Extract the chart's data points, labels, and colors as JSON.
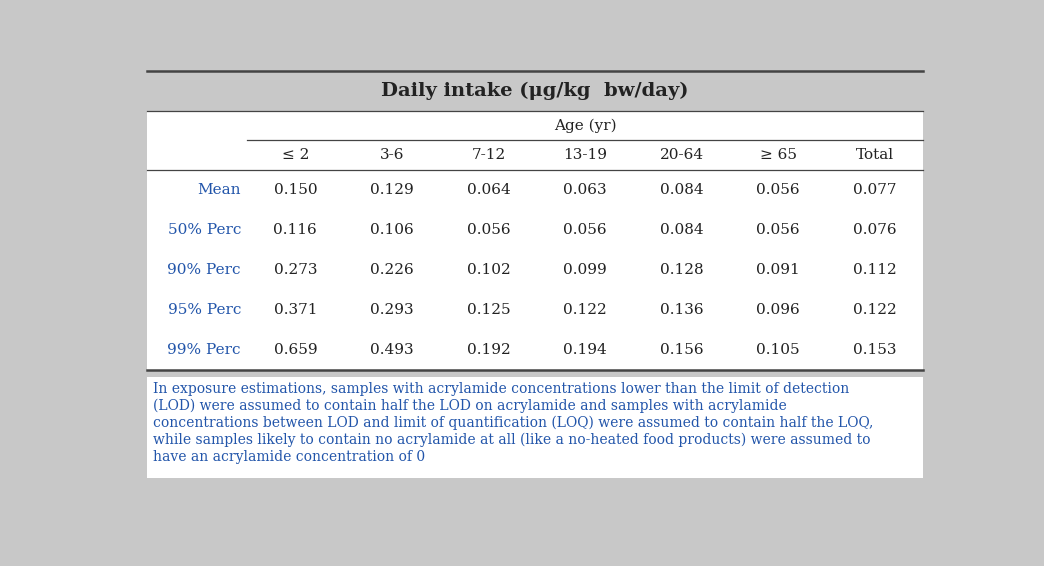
{
  "title": "Daily intake (μg/kg  bw/day)",
  "subtitle": "Age (yr)",
  "col_headers": [
    "≤ 2",
    "3-6",
    "7-12",
    "13-19",
    "20-64",
    "≥ 65",
    "Total"
  ],
  "row_headers": [
    "Mean",
    "50% Perc",
    "90% Perc",
    "95% Perc",
    "99% Perc"
  ],
  "data": [
    [
      "0.150",
      "0.129",
      "0.064",
      "0.063",
      "0.084",
      "0.056",
      "0.077"
    ],
    [
      "0.116",
      "0.106",
      "0.056",
      "0.056",
      "0.084",
      "0.056",
      "0.076"
    ],
    [
      "0.273",
      "0.226",
      "0.102",
      "0.099",
      "0.128",
      "0.091",
      "0.112"
    ],
    [
      "0.371",
      "0.293",
      "0.125",
      "0.122",
      "0.136",
      "0.096",
      "0.122"
    ],
    [
      "0.659",
      "0.493",
      "0.192",
      "0.194",
      "0.156",
      "0.105",
      "0.153"
    ]
  ],
  "footnote_lines": [
    "In exposure estimations, samples with acrylamide concentrations lower than the limit of detection",
    "(LOD) were assumed to contain half the LOD on acrylamide and samples with acrylamide",
    "concentrations between LOD and limit of quantification (LOQ) were assumed to contain half the LOQ,",
    "while samples likely to contain no acrylamide at all (like a no-heated food products) were assumed to",
    "have an acrylamide concentration of 0"
  ],
  "background_color": "#c8c8c8",
  "white_color": "#ffffff",
  "header_bg_color": "#c8c8c8",
  "line_color": "#444444",
  "text_color": "#222222",
  "blue_color": "#2255aa",
  "title_fontsize": 14,
  "subtitle_fontsize": 11,
  "header_fontsize": 11,
  "data_fontsize": 11,
  "footnote_fontsize": 10
}
